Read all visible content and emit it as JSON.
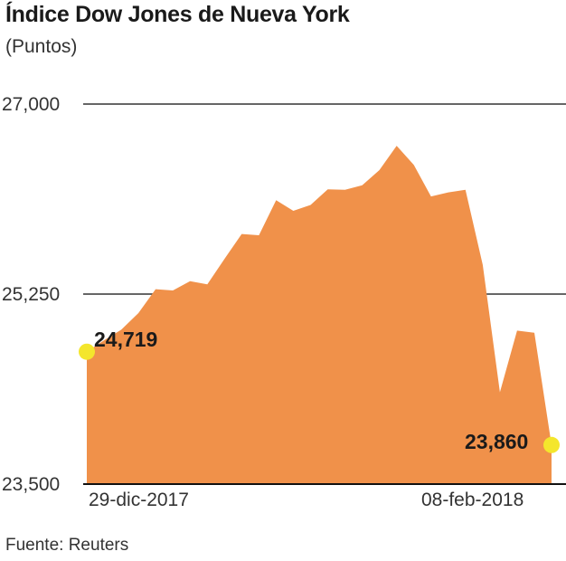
{
  "title": "Índice Dow Jones de Nueva York",
  "subtitle": "(Puntos)",
  "source": "Fuente: Reuters",
  "colors": {
    "area": "#f0914a",
    "marker": "#f4e62c",
    "gridline": "#333333",
    "axis": "#111111"
  },
  "chart_data": {
    "type": "area",
    "x_start_label": "29-dic-2017",
    "x_end_label": "08-feb-2018",
    "y_ticks": [
      "27,000",
      "25,250",
      "23,500"
    ],
    "ylim": [
      23500,
      27000
    ],
    "values": [
      24719,
      24824,
      24922,
      25075,
      25295,
      25283,
      25369,
      25340,
      25574,
      25803,
      25792,
      26115,
      26017,
      26071,
      26214,
      26210,
      26252,
      26392,
      26616,
      26440,
      26149,
      26187,
      26210,
      25520,
      24346,
      24913,
      24893,
      23860
    ],
    "annotations": [
      {
        "label": "24,719",
        "value": 24719,
        "position": "start"
      },
      {
        "label": "23,860",
        "value": 23860,
        "position": "end"
      }
    ]
  }
}
